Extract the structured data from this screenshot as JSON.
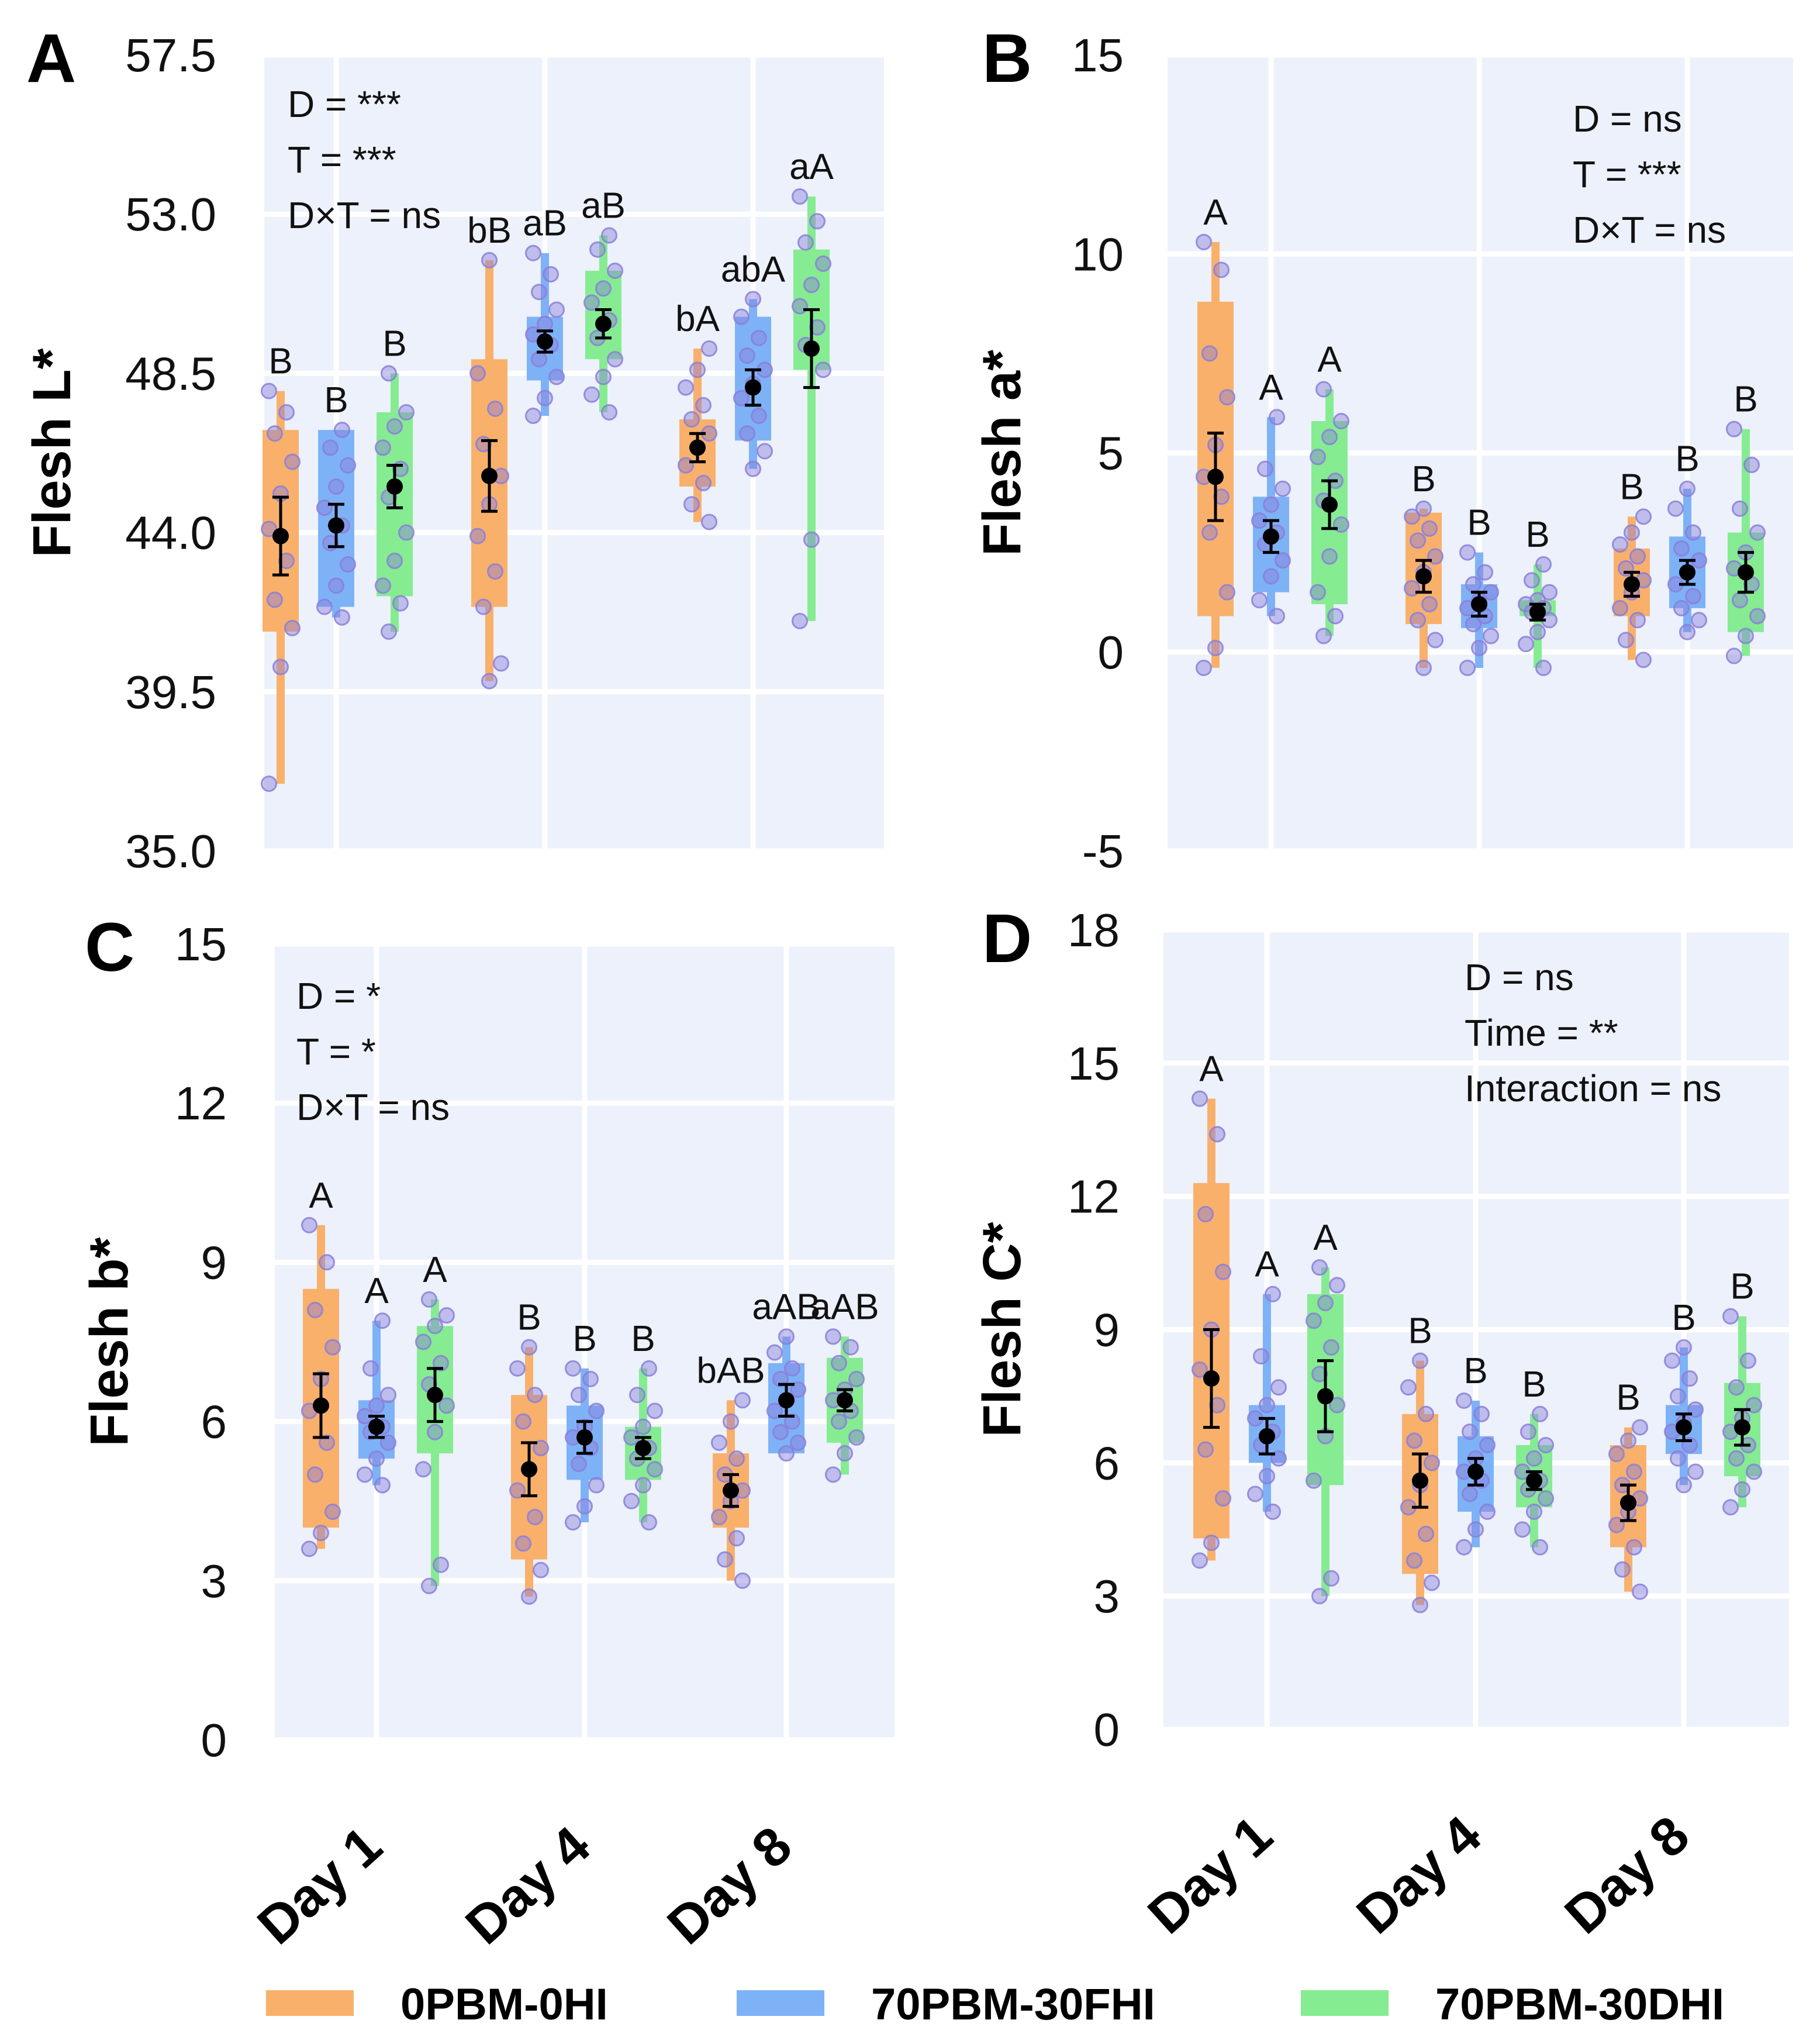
{
  "colors": {
    "0PBM-0HI": "#f9b06b",
    "70PBM-30FHI": "#7eb2f7",
    "70PBM-30DHI": "#85ec91",
    "points": "#8a7fd9",
    "mean": "#000000"
  },
  "legend": [
    "0PBM-0HI",
    "70PBM-30FHI",
    "70PBM-30DHI"
  ],
  "chart_data": [
    {
      "type": "box",
      "panel": "A",
      "ylabel": "Flesh L*",
      "categories": [
        "Day 1",
        "Day 4",
        "Day 8"
      ],
      "yticks": [
        "57.5",
        "53.0",
        "48.5",
        "44.0",
        "39.5",
        "35.0"
      ],
      "ylim": [
        35.0,
        57.5
      ],
      "stats": [
        "D = ***",
        "T = ***",
        "D×T = ns"
      ],
      "series": [
        {
          "name": "0PBM-0HI",
          "boxes": [
            [
              36.9,
              41.2,
              46.9,
              48.0
            ],
            [
              39.8,
              41.9,
              48.9,
              51.7
            ],
            [
              44.3,
              45.3,
              47.2,
              49.2
            ]
          ],
          "means": [
            43.9,
            45.6,
            46.4
          ],
          "err": [
            1.1,
            1.0,
            0.4
          ],
          "letters": [
            "B",
            "bB",
            "bA"
          ],
          "points": [
            [
              36.9,
              40.2,
              41.3,
              42.1,
              43.2,
              44.1,
              45.1,
              46.0,
              46.8,
              47.4,
              48.0
            ],
            [
              39.8,
              40.3,
              41.9,
              42.9,
              43.9,
              44.8,
              45.6,
              46.5,
              47.5,
              48.5,
              51.7
            ],
            [
              44.3,
              44.8,
              45.4,
              45.9,
              46.4,
              46.8,
              47.2,
              47.6,
              48.1,
              48.6,
              49.2
            ]
          ]
        },
        {
          "name": "70PBM-30FHI",
          "boxes": [
            [
              41.6,
              41.9,
              46.9,
              46.9
            ],
            [
              47.3,
              48.3,
              50.1,
              51.9
            ],
            [
              45.8,
              46.6,
              50.1,
              50.6
            ]
          ],
          "means": [
            44.2,
            49.4,
            48.1
          ],
          "err": [
            0.6,
            0.3,
            0.5
          ],
          "letters": [
            "B",
            "aB",
            "abA"
          ],
          "points": [
            [
              41.6,
              41.9,
              42.5,
              43.1,
              43.7,
              44.2,
              44.7,
              45.3,
              45.9,
              46.4,
              46.9
            ],
            [
              47.3,
              47.8,
              48.4,
              48.9,
              49.3,
              49.6,
              49.9,
              50.3,
              50.8,
              51.3,
              51.9
            ],
            [
              45.8,
              46.3,
              46.8,
              47.3,
              47.8,
              48.2,
              48.6,
              49.0,
              49.5,
              50.1,
              50.6
            ]
          ]
        },
        {
          "name": "70PBM-30DHI",
          "boxes": [
            [
              41.2,
              42.2,
              47.4,
              48.5
            ],
            [
              47.4,
              48.9,
              51.4,
              52.4
            ],
            [
              41.5,
              48.6,
              52.0,
              53.5
            ]
          ],
          "means": [
            45.3,
            49.9,
            49.2
          ],
          "err": [
            0.6,
            0.4,
            1.1
          ],
          "letters": [
            "B",
            "aB",
            "aA"
          ],
          "points": [
            [
              41.2,
              42.0,
              42.5,
              43.2,
              44.0,
              45.0,
              45.8,
              46.4,
              47.0,
              47.4,
              48.5
            ],
            [
              47.4,
              47.9,
              48.4,
              48.9,
              49.5,
              50.0,
              50.5,
              50.9,
              51.4,
              52.0,
              52.4
            ],
            [
              41.5,
              43.8,
              48.6,
              49.3,
              49.8,
              50.4,
              51.0,
              51.6,
              52.2,
              52.8,
              53.5
            ]
          ]
        }
      ]
    },
    {
      "type": "box",
      "panel": "B",
      "ylabel": "Flesh a*",
      "categories": [
        "Day 1",
        "Day 4",
        "Day 8"
      ],
      "yticks": [
        "15",
        "10",
        "5",
        "0",
        "-5"
      ],
      "ylim": [
        -5,
        15
      ],
      "stats": [
        "D = ns",
        "T = ***",
        "D×T = ns"
      ],
      "series": [
        {
          "name": "0PBM-0HI",
          "boxes": [
            [
              -0.4,
              0.9,
              8.8,
              10.3
            ],
            [
              -0.4,
              0.7,
              3.5,
              3.6
            ],
            [
              -0.2,
              0.9,
              2.6,
              3.4
            ]
          ],
          "means": [
            4.4,
            1.9,
            1.7
          ],
          "err": [
            1.1,
            0.4,
            0.3
          ],
          "letters": [
            "A",
            "B",
            "B"
          ],
          "points": [
            [
              -0.4,
              0.1,
              1.5,
              3.0,
              3.9,
              4.4,
              5.2,
              6.4,
              7.5,
              9.6,
              10.3
            ],
            [
              -0.4,
              0.3,
              0.8,
              1.2,
              1.6,
              2.0,
              2.4,
              2.8,
              3.1,
              3.4,
              3.6
            ],
            [
              -0.2,
              0.3,
              0.8,
              1.1,
              1.5,
              1.8,
              2.1,
              2.4,
              2.7,
              3.0,
              3.4
            ]
          ]
        },
        {
          "name": "70PBM-30FHI",
          "boxes": [
            [
              0.9,
              1.5,
              3.9,
              5.9
            ],
            [
              -0.4,
              0.6,
              1.7,
              2.5
            ],
            [
              0.5,
              1.1,
              2.9,
              4.1
            ]
          ],
          "means": [
            2.9,
            1.2,
            2.0
          ],
          "err": [
            0.4,
            0.3,
            0.3
          ],
          "letters": [
            "A",
            "B",
            "B"
          ],
          "points": [
            [
              0.9,
              1.3,
              1.9,
              2.3,
              2.7,
              3.0,
              3.3,
              3.7,
              4.1,
              4.6,
              5.9
            ],
            [
              -0.4,
              0.1,
              0.4,
              0.7,
              0.9,
              1.1,
              1.3,
              1.5,
              1.7,
              2.0,
              2.5
            ],
            [
              0.5,
              0.8,
              1.1,
              1.4,
              1.7,
              2.0,
              2.3,
              2.6,
              3.0,
              3.6,
              4.1
            ]
          ]
        },
        {
          "name": "70PBM-30DHI",
          "boxes": [
            [
              0.4,
              1.2,
              5.8,
              6.6
            ],
            [
              -0.4,
              0.9,
              1.3,
              2.2
            ],
            [
              -0.1,
              0.5,
              3.0,
              5.6
            ]
          ],
          "means": [
            3.7,
            1.0,
            2.0
          ],
          "err": [
            0.6,
            0.2,
            0.5
          ],
          "letters": [
            "A",
            "B",
            "B"
          ],
          "points": [
            [
              0.4,
              0.9,
              1.5,
              2.4,
              3.2,
              3.8,
              4.3,
              4.9,
              5.4,
              5.8,
              6.6
            ],
            [
              -0.4,
              0.2,
              0.5,
              0.8,
              1.0,
              1.1,
              1.2,
              1.3,
              1.5,
              1.8,
              2.2
            ],
            [
              -0.1,
              0.4,
              0.9,
              1.3,
              1.7,
              2.1,
              2.5,
              3.0,
              3.6,
              4.7,
              5.6
            ]
          ]
        }
      ]
    },
    {
      "type": "box",
      "panel": "C",
      "ylabel": "Flesh b*",
      "categories": [
        "Day 1",
        "Day 4",
        "Day 8"
      ],
      "yticks": [
        "15",
        "12",
        "9",
        "6",
        "3",
        "0"
      ],
      "ylim": [
        0,
        15
      ],
      "stats": [
        "D = *",
        "T = *",
        "D×T = ns"
      ],
      "series": [
        {
          "name": "0PBM-0HI",
          "boxes": [
            [
              3.6,
              4.0,
              8.5,
              9.7
            ],
            [
              2.7,
              3.4,
              6.5,
              7.4
            ],
            [
              3.0,
              4.0,
              5.4,
              6.4
            ]
          ],
          "means": [
            6.3,
            5.1,
            4.7
          ],
          "err": [
            0.6,
            0.5,
            0.3
          ],
          "letters": [
            "A",
            "B",
            "bAB"
          ],
          "points": [
            [
              3.6,
              3.9,
              4.3,
              5.0,
              5.6,
              6.2,
              6.8,
              7.4,
              8.1,
              9.0,
              9.7
            ],
            [
              2.7,
              3.2,
              3.7,
              4.2,
              4.7,
              5.1,
              5.5,
              6.0,
              6.5,
              7.0,
              7.4
            ],
            [
              3.0,
              3.4,
              3.8,
              4.2,
              4.5,
              4.7,
              5.0,
              5.3,
              5.6,
              6.0,
              6.4
            ]
          ]
        },
        {
          "name": "70PBM-30FHI",
          "boxes": [
            [
              4.8,
              5.3,
              6.4,
              7.9
            ],
            [
              4.1,
              4.9,
              6.3,
              7.0
            ],
            [
              5.4,
              5.4,
              7.1,
              7.6
            ]
          ],
          "means": [
            5.9,
            5.7,
            6.4
          ],
          "err": [
            0.2,
            0.3,
            0.3
          ],
          "letters": [
            "A",
            "B",
            "aAB"
          ],
          "points": [
            [
              4.8,
              5.0,
              5.3,
              5.6,
              5.8,
              5.9,
              6.1,
              6.3,
              6.5,
              7.0,
              7.9
            ],
            [
              4.1,
              4.4,
              4.8,
              5.2,
              5.5,
              5.7,
              5.9,
              6.2,
              6.5,
              6.8,
              7.0
            ],
            [
              5.4,
              5.6,
              5.8,
              6.0,
              6.2,
              6.4,
              6.6,
              6.8,
              7.0,
              7.3,
              7.6
            ]
          ]
        },
        {
          "name": "70PBM-30DHI",
          "boxes": [
            [
              2.9,
              5.4,
              7.8,
              8.3
            ],
            [
              4.1,
              4.9,
              5.9,
              7.0
            ],
            [
              5.0,
              5.6,
              7.2,
              7.6
            ]
          ],
          "means": [
            6.5,
            5.5,
            6.4
          ],
          "err": [
            0.5,
            0.2,
            0.2
          ],
          "letters": [
            "A",
            "B",
            "aAB"
          ],
          "points": [
            [
              2.9,
              3.3,
              5.1,
              5.8,
              6.3,
              6.7,
              7.1,
              7.5,
              7.8,
              8.0,
              8.3
            ],
            [
              4.1,
              4.5,
              4.8,
              5.1,
              5.3,
              5.5,
              5.7,
              5.9,
              6.2,
              6.5,
              7.0
            ],
            [
              5.0,
              5.4,
              5.7,
              6.0,
              6.2,
              6.4,
              6.6,
              6.8,
              7.1,
              7.4,
              7.6
            ]
          ]
        }
      ]
    },
    {
      "type": "box",
      "panel": "D",
      "ylabel": "Flesh C*",
      "categories": [
        "Day 1",
        "Day 4",
        "Day 8"
      ],
      "yticks": [
        "18",
        "15",
        "12",
        "9",
        "6",
        "3",
        "0"
      ],
      "ylim": [
        0,
        18
      ],
      "stats": [
        "D = ns",
        "Time = **",
        "Interaction = ns"
      ],
      "series": [
        {
          "name": "0PBM-0HI",
          "boxes": [
            [
              3.8,
              4.3,
              12.3,
              14.2
            ],
            [
              2.8,
              3.5,
              7.1,
              8.3
            ],
            [
              3.1,
              4.1,
              6.4,
              6.8
            ]
          ],
          "means": [
            7.9,
            5.6,
            5.1
          ],
          "err": [
            1.1,
            0.6,
            0.4
          ],
          "letters": [
            "A",
            "B",
            "B"
          ],
          "points": [
            [
              3.8,
              4.2,
              5.2,
              6.3,
              7.3,
              8.1,
              9.0,
              10.3,
              11.6,
              13.4,
              14.2
            ],
            [
              2.8,
              3.3,
              3.8,
              4.4,
              5.0,
              5.5,
              6.0,
              6.5,
              7.1,
              7.7,
              8.3
            ],
            [
              3.1,
              3.6,
              4.1,
              4.6,
              4.9,
              5.2,
              5.5,
              5.8,
              6.2,
              6.5,
              6.8
            ]
          ]
        },
        {
          "name": "70PBM-30FHI",
          "boxes": [
            [
              4.9,
              6.0,
              7.3,
              9.8
            ],
            [
              4.1,
              4.9,
              6.6,
              7.4
            ],
            [
              5.5,
              6.2,
              7.3,
              8.6
            ]
          ],
          "means": [
            6.6,
            5.8,
            6.8
          ],
          "err": [
            0.4,
            0.3,
            0.3
          ],
          "letters": [
            "A",
            "B",
            "B"
          ],
          "points": [
            [
              4.9,
              5.3,
              5.7,
              6.1,
              6.4,
              6.7,
              7.0,
              7.3,
              7.7,
              8.4,
              9.8
            ],
            [
              4.1,
              4.5,
              4.9,
              5.3,
              5.6,
              5.8,
              6.1,
              6.4,
              6.7,
              7.1,
              7.4
            ],
            [
              5.5,
              5.8,
              6.1,
              6.4,
              6.7,
              6.9,
              7.2,
              7.5,
              7.9,
              8.3,
              8.6
            ]
          ]
        },
        {
          "name": "70PBM-30DHI",
          "boxes": [
            [
              3.0,
              5.5,
              9.8,
              10.4
            ],
            [
              4.1,
              5.0,
              6.4,
              7.1
            ],
            [
              5.0,
              5.7,
              7.8,
              9.3
            ]
          ],
          "means": [
            7.5,
            5.6,
            6.8
          ],
          "err": [
            0.8,
            0.2,
            0.4
          ],
          "letters": [
            "A",
            "B",
            "B"
          ],
          "points": [
            [
              3.0,
              3.4,
              5.6,
              6.6,
              7.3,
              8.0,
              8.6,
              9.2,
              9.6,
              10.0,
              10.4
            ],
            [
              4.1,
              4.5,
              4.9,
              5.2,
              5.4,
              5.6,
              5.8,
              6.1,
              6.4,
              6.7,
              7.1
            ],
            [
              5.0,
              5.4,
              5.8,
              6.1,
              6.4,
              6.7,
              7.0,
              7.3,
              7.7,
              8.3,
              9.3
            ]
          ]
        }
      ]
    }
  ]
}
